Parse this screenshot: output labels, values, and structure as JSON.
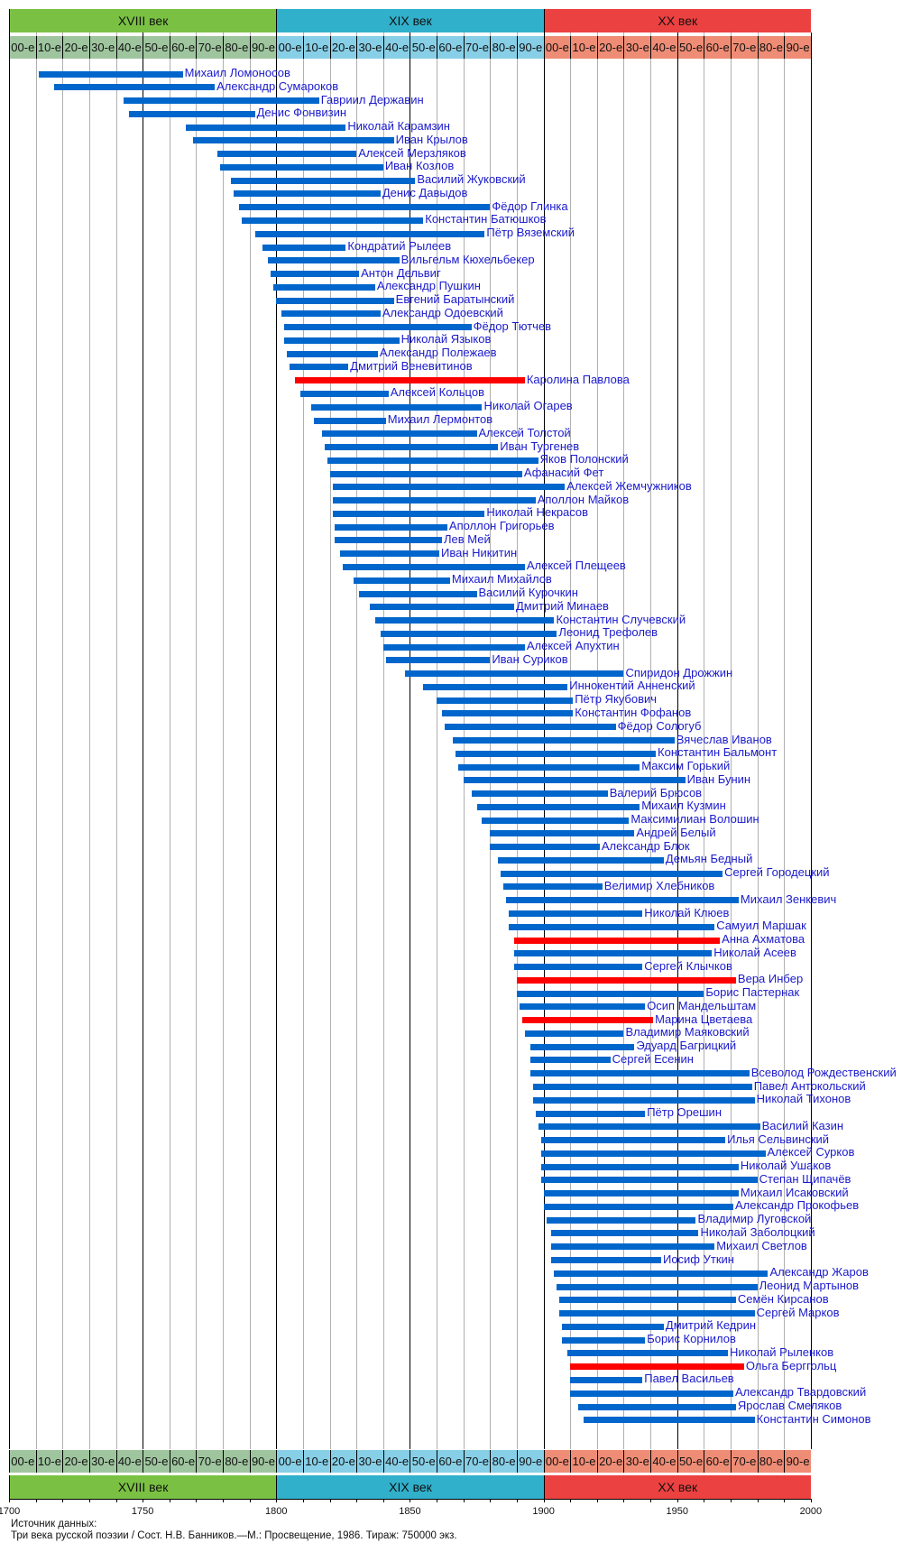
{
  "chart_data": {
    "type": "timeline",
    "xlim": [
      1700,
      2000
    ],
    "x_ticks": [
      1700,
      1750,
      1800,
      1850,
      1900,
      1950,
      2000
    ],
    "centuries": [
      {
        "label": "XVIII век",
        "start": 1700,
        "end": 1800,
        "color": "#7ac143",
        "decade_color": "#9fc59f"
      },
      {
        "label": "XIX век",
        "start": 1800,
        "end": 1900,
        "color": "#31b0cc",
        "decade_color": "#87cfe6"
      },
      {
        "label": "XX век",
        "start": 1900,
        "end": 2000,
        "color": "#ec4141",
        "decade_color": "#ef8c75"
      }
    ],
    "decade_labels": [
      "00-е",
      "10-е",
      "20-е",
      "30-е",
      "40-е",
      "50-е",
      "60-е",
      "70-е",
      "80-е",
      "90-е"
    ],
    "bar_color": "#0066cc",
    "highlight_color": "#ff0000",
    "label_color": "#1a1acc",
    "grid": true,
    "poets": [
      {
        "name": "Михаил Ломоносов",
        "born": 1711,
        "died": 1765
      },
      {
        "name": "Александр Сумароков",
        "born": 1717,
        "died": 1777
      },
      {
        "name": "Гавриил Державин",
        "born": 1743,
        "died": 1816
      },
      {
        "name": "Денис Фонвизин",
        "born": 1745,
        "died": 1792
      },
      {
        "name": "Николай Карамзин",
        "born": 1766,
        "died": 1826
      },
      {
        "name": "Иван Крылов",
        "born": 1769,
        "died": 1844
      },
      {
        "name": "Алексей Мерзляков",
        "born": 1778,
        "died": 1830
      },
      {
        "name": "Иван Козлов",
        "born": 1779,
        "died": 1840
      },
      {
        "name": "Василий Жуковский",
        "born": 1783,
        "died": 1852
      },
      {
        "name": "Денис Давыдов",
        "born": 1784,
        "died": 1839
      },
      {
        "name": "Фёдор Глинка",
        "born": 1786,
        "died": 1880
      },
      {
        "name": "Константин Батюшков",
        "born": 1787,
        "died": 1855
      },
      {
        "name": "Пётр Вяземский",
        "born": 1792,
        "died": 1878
      },
      {
        "name": "Кондратий Рылеев",
        "born": 1795,
        "died": 1826
      },
      {
        "name": "Вильгельм Кюхельбекер",
        "born": 1797,
        "died": 1846
      },
      {
        "name": "Антон Дельвиг",
        "born": 1798,
        "died": 1831
      },
      {
        "name": "Александр Пушкин",
        "born": 1799,
        "died": 1837
      },
      {
        "name": "Евгений Баратынский",
        "born": 1800,
        "died": 1844
      },
      {
        "name": "Александр Одоевский",
        "born": 1802,
        "died": 1839
      },
      {
        "name": "Фёдор Тютчев",
        "born": 1803,
        "died": 1873
      },
      {
        "name": "Николай Языков",
        "born": 1803,
        "died": 1846
      },
      {
        "name": "Александр Полежаев",
        "born": 1804,
        "died": 1838
      },
      {
        "name": "Дмитрий Веневитинов",
        "born": 1805,
        "died": 1827
      },
      {
        "name": "Каролина Павлова",
        "born": 1807,
        "died": 1893,
        "highlight": true
      },
      {
        "name": "Алексей Кольцов",
        "born": 1809,
        "died": 1842
      },
      {
        "name": "Николай Огарев",
        "born": 1813,
        "died": 1877
      },
      {
        "name": "Михаил Лермонтов",
        "born": 1814,
        "died": 1841
      },
      {
        "name": "Алексей Толстой",
        "born": 1817,
        "died": 1875
      },
      {
        "name": "Иван Тургенев",
        "born": 1818,
        "died": 1883
      },
      {
        "name": "Яков Полонский",
        "born": 1819,
        "died": 1898
      },
      {
        "name": "Афанасий Фет",
        "born": 1820,
        "died": 1892
      },
      {
        "name": "Алексей Жемчужников",
        "born": 1821,
        "died": 1908
      },
      {
        "name": "Аполлон Майков",
        "born": 1821,
        "died": 1897
      },
      {
        "name": "Николай Некрасов",
        "born": 1821,
        "died": 1878
      },
      {
        "name": "Аполлон Григорьев",
        "born": 1822,
        "died": 1864
      },
      {
        "name": "Лев Мей",
        "born": 1822,
        "died": 1862
      },
      {
        "name": "Иван Никитин",
        "born": 1824,
        "died": 1861
      },
      {
        "name": "Алексей Плещеев",
        "born": 1825,
        "died": 1893
      },
      {
        "name": "Михаил Михайлов",
        "born": 1829,
        "died": 1865
      },
      {
        "name": "Василий Курочкин",
        "born": 1831,
        "died": 1875
      },
      {
        "name": "Дмитрий Минаев",
        "born": 1835,
        "died": 1889
      },
      {
        "name": "Константин Случевский",
        "born": 1837,
        "died": 1904
      },
      {
        "name": "Леонид Трефолев",
        "born": 1839,
        "died": 1905
      },
      {
        "name": "Алексей Апухтин",
        "born": 1840,
        "died": 1893
      },
      {
        "name": "Иван Суриков",
        "born": 1841,
        "died": 1880
      },
      {
        "name": "Спиридон Дрожжин",
        "born": 1848,
        "died": 1930
      },
      {
        "name": "Иннокентий Анненский",
        "born": 1855,
        "died": 1909
      },
      {
        "name": "Пётр Якубович",
        "born": 1860,
        "died": 1911
      },
      {
        "name": "Константин Фофанов",
        "born": 1862,
        "died": 1911
      },
      {
        "name": "Фёдор Сологуб",
        "born": 1863,
        "died": 1927
      },
      {
        "name": "Вячеслав Иванов",
        "born": 1866,
        "died": 1949
      },
      {
        "name": "Константин Бальмонт",
        "born": 1867,
        "died": 1942
      },
      {
        "name": "Максим Горький",
        "born": 1868,
        "died": 1936
      },
      {
        "name": "Иван Бунин",
        "born": 1870,
        "died": 1953
      },
      {
        "name": "Валерий Брюсов",
        "born": 1873,
        "died": 1924
      },
      {
        "name": "Михаил Кузмин",
        "born": 1875,
        "died": 1936
      },
      {
        "name": "Максимилиан Волошин",
        "born": 1877,
        "died": 1932
      },
      {
        "name": "Андрей Белый",
        "born": 1880,
        "died": 1934
      },
      {
        "name": "Александр Блок",
        "born": 1880,
        "died": 1921
      },
      {
        "name": "Демьян Бедный",
        "born": 1883,
        "died": 1945
      },
      {
        "name": "Сергей Городецкий",
        "born": 1884,
        "died": 1967
      },
      {
        "name": "Велимир Хлебников",
        "born": 1885,
        "died": 1922
      },
      {
        "name": "Михаил Зенкевич",
        "born": 1886,
        "died": 1973
      },
      {
        "name": "Николай Клюев",
        "born": 1887,
        "died": 1937
      },
      {
        "name": "Самуил Маршак",
        "born": 1887,
        "died": 1964
      },
      {
        "name": "Анна Ахматова",
        "born": 1889,
        "died": 1966,
        "highlight": true
      },
      {
        "name": "Николай Асеев",
        "born": 1889,
        "died": 1963
      },
      {
        "name": "Сергей Клычков",
        "born": 1889,
        "died": 1937
      },
      {
        "name": "Вера Инбер",
        "born": 1890,
        "died": 1972,
        "highlight": true
      },
      {
        "name": "Борис Пастернак",
        "born": 1890,
        "died": 1960
      },
      {
        "name": "Осип Мандельштам",
        "born": 1891,
        "died": 1938
      },
      {
        "name": "Марина Цветаева",
        "born": 1892,
        "died": 1941,
        "highlight": true
      },
      {
        "name": "Владимир Маяковский",
        "born": 1893,
        "died": 1930
      },
      {
        "name": "Эдуард Багрицкий",
        "born": 1895,
        "died": 1934
      },
      {
        "name": "Сергей Есенин",
        "born": 1895,
        "died": 1925
      },
      {
        "name": "Всеволод Рождественский",
        "born": 1895,
        "died": 1977
      },
      {
        "name": "Павел Антокольский",
        "born": 1896,
        "died": 1978
      },
      {
        "name": "Николай Тихонов",
        "born": 1896,
        "died": 1979
      },
      {
        "name": "Пётр Орешин",
        "born": 1897,
        "died": 1938
      },
      {
        "name": "Василий Казин",
        "born": 1898,
        "died": 1981
      },
      {
        "name": "Илья Сельвинский",
        "born": 1899,
        "died": 1968
      },
      {
        "name": "Алексей Сурков",
        "born": 1899,
        "died": 1983
      },
      {
        "name": "Николай Ушаков",
        "born": 1899,
        "died": 1973
      },
      {
        "name": "Степан Щипачёв",
        "born": 1899,
        "died": 1980
      },
      {
        "name": "Михаил Исаковский",
        "born": 1900,
        "died": 1973
      },
      {
        "name": "Александр Прокофьев",
        "born": 1900,
        "died": 1971
      },
      {
        "name": "Владимир Луговской",
        "born": 1901,
        "died": 1957
      },
      {
        "name": "Николай Заболоцкий",
        "born": 1903,
        "died": 1958
      },
      {
        "name": "Михаил Светлов",
        "born": 1903,
        "died": 1964
      },
      {
        "name": "Иосиф Уткин",
        "born": 1903,
        "died": 1944
      },
      {
        "name": "Александр Жаров",
        "born": 1904,
        "died": 1984
      },
      {
        "name": "Леонид Мартынов",
        "born": 1905,
        "died": 1980
      },
      {
        "name": "Семён Кирсанов",
        "born": 1906,
        "died": 1972
      },
      {
        "name": "Сергей Марков",
        "born": 1906,
        "died": 1979
      },
      {
        "name": "Дмитрий Кедрин",
        "born": 1907,
        "died": 1945
      },
      {
        "name": "Борис Корнилов",
        "born": 1907,
        "died": 1938
      },
      {
        "name": "Николай Рыленков",
        "born": 1909,
        "died": 1969
      },
      {
        "name": "Ольга Берггольц",
        "born": 1910,
        "died": 1975,
        "highlight": true
      },
      {
        "name": "Павел Васильев",
        "born": 1910,
        "died": 1937
      },
      {
        "name": "Александр Твардовский",
        "born": 1910,
        "died": 1971
      },
      {
        "name": "Ярослав Смеляков",
        "born": 1913,
        "died": 1972
      },
      {
        "name": "Константин Симонов",
        "born": 1915,
        "died": 1979
      }
    ]
  },
  "source": {
    "heading": "Источник данных:",
    "text": "Три века русской поэзии / Сост. Н.В. Банников.—М.: Просвещение, 1986. Тираж: 750000 экз."
  }
}
